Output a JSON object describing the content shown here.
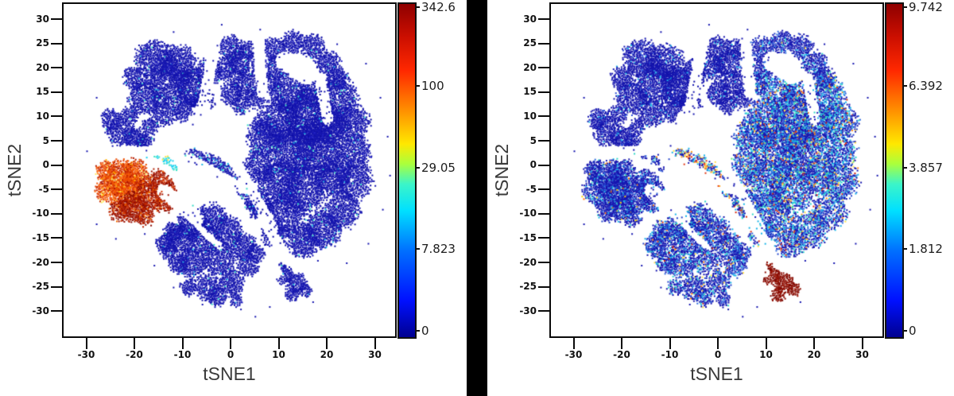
{
  "figure": {
    "background": "#ffffff",
    "separator_color": "#000000"
  },
  "chart_data": {
    "type": "scatter",
    "subtype": "tSNE-density-map-pair",
    "axes": {
      "x_label": "tSNE1",
      "y_label": "tSNE2",
      "x_ticks": [
        -30,
        -20,
        -10,
        0,
        10,
        20,
        30
      ],
      "y_ticks": [
        30,
        25,
        20,
        15,
        10,
        5,
        0,
        -5,
        -10,
        -15,
        -20,
        -25,
        -30
      ],
      "x_range": [
        -34.7,
        34.2
      ],
      "y_range": [
        -35.2,
        33.1
      ],
      "grid": false
    },
    "colorbar": {
      "colormap": "jet",
      "scale_hint": "nonlinear (log-like tick spacing)",
      "tick_fracs_from_top": [
        0.012,
        0.249,
        0.493,
        0.737,
        0.983
      ]
    },
    "plots": [
      {
        "id": "left",
        "seed": 42,
        "colorbar_ticks": [
          "342.6",
          "100",
          "29.05",
          "7.823",
          "0"
        ],
        "singles_color": "#1616b0",
        "clusters": {
          "A": [
            "bSolid",
            0.93
          ],
          "B": [
            "bSolid",
            0.93
          ],
          "Ctop": [
            "bSolid",
            0.93
          ],
          "CtrTop": [
            "bSolid",
            0.93
          ],
          "Cright": [
            "bSolid",
            0.93
          ],
          "neck": [
            "bNeck",
            0.9
          ],
          "D_or": [
            "orHot",
            0.95
          ],
          "D_dk": [
            "dkRed",
            0.95
          ],
          "D_fr": [
            "cyanL",
            0.85
          ],
          "E": [
            "bSolid",
            0.93
          ],
          "F": [
            "bSolid",
            0.95
          ],
          "Fdot": [
            "bSolid",
            0.9
          ]
        }
      },
      {
        "id": "right",
        "seed": 1337,
        "colorbar_ticks": [
          "9.742",
          "6.392",
          "3.857",
          "1.812",
          "0"
        ],
        "singles_color": "#1616b0",
        "clusters": {
          "A": [
            "bLight",
            0.92
          ],
          "B": [
            "bLight",
            0.92
          ],
          "Ctop": [
            "bLight",
            0.92
          ],
          "CtrTop": [
            "bLight2",
            0.9
          ],
          "Cright": [
            "bHeavy",
            0.82
          ],
          "neck": [
            "neckHot",
            0.85
          ],
          "D_or": [
            "bMed",
            0.9
          ],
          "D_dk": [
            "bMed",
            0.9
          ],
          "D_fr": [
            "bMed",
            0.85
          ],
          "E": [
            "bMedHv",
            0.86
          ],
          "F": [
            "dkSolid",
            0.95
          ],
          "Fdot": [
            "dkSolid",
            0.9
          ]
        }
      }
    ],
    "palettes": {
      "bSolid": [
        [
          "#1616b0",
          78
        ],
        [
          "#0d0da4",
          13
        ],
        [
          "#2424c6",
          7
        ],
        [
          "#1ab4e6",
          1
        ],
        [
          "#35dcc8",
          1
        ]
      ],
      "bNeck": [
        [
          "#1616b0",
          70
        ],
        [
          "#0d0da4",
          12
        ],
        [
          "#2424c6",
          8
        ],
        [
          "#1ab4e6",
          6
        ],
        [
          "#35dcc8",
          4
        ]
      ],
      "bLight": [
        [
          "#1616b0",
          84
        ],
        [
          "#0d0da4",
          8
        ],
        [
          "#2e52d8",
          5
        ],
        [
          "#18b6e8",
          3
        ]
      ],
      "bLight2": [
        [
          "#1616b0",
          72
        ],
        [
          "#2444cc",
          12
        ],
        [
          "#2e6ae0",
          8
        ],
        [
          "#18b6e8",
          6
        ],
        [
          "#30d8c8",
          1.5
        ],
        [
          "#ffe14a",
          0.5
        ]
      ],
      "bMed": [
        [
          "#1616b0",
          67
        ],
        [
          "#2444cc",
          14
        ],
        [
          "#2e6ae0",
          9
        ],
        [
          "#18b6e8",
          6
        ],
        [
          "#30d8c8",
          2
        ],
        [
          "#ffd400",
          1
        ],
        [
          "#ff7300",
          1
        ]
      ],
      "bMedHv": [
        [
          "#1616b0",
          56
        ],
        [
          "#2444cc",
          16
        ],
        [
          "#2e6ae0",
          11
        ],
        [
          "#18b6e8",
          9
        ],
        [
          "#30d8c8",
          4
        ],
        [
          "#ffe14a",
          2
        ],
        [
          "#ff7300",
          1.2
        ],
        [
          "#d22a10",
          0.8
        ]
      ],
      "bHeavy": [
        [
          "#1616b0",
          40
        ],
        [
          "#2444cc",
          18
        ],
        [
          "#2e6ae0",
          13
        ],
        [
          "#18b6e8",
          13
        ],
        [
          "#30d8c8",
          6
        ],
        [
          "#ffe14a",
          3
        ],
        [
          "#ff8c1a",
          1.8
        ],
        [
          "#d82a10",
          2.2
        ],
        [
          "#58e07c",
          1
        ]
      ],
      "neckHot": [
        [
          "#1616b0",
          34
        ],
        [
          "#2444cc",
          14
        ],
        [
          "#18b6e8",
          14
        ],
        [
          "#30d8c8",
          8
        ],
        [
          "#ffe14a",
          10
        ],
        [
          "#ffa01e",
          10
        ],
        [
          "#e03513",
          10
        ]
      ],
      "orHot": [
        [
          "#f05000",
          34
        ],
        [
          "#e03c00",
          22
        ],
        [
          "#cc2a00",
          16
        ],
        [
          "#ff7a1e",
          12
        ],
        [
          "#b01800",
          8
        ],
        [
          "#ffb300",
          5
        ],
        [
          "#ffec60",
          3
        ]
      ],
      "dkRed": [
        [
          "#b62000",
          30
        ],
        [
          "#9e1200",
          28
        ],
        [
          "#8a0a00",
          22
        ],
        [
          "#d63600",
          14
        ],
        [
          "#f26a00",
          6
        ]
      ],
      "cyanL": [
        [
          "#1ad2f0",
          45
        ],
        [
          "#38e2c4",
          30
        ],
        [
          "#86ecff",
          15
        ],
        [
          "#ffe14a",
          10
        ]
      ],
      "dkSolid": [
        [
          "#8d0d03",
          70
        ],
        [
          "#7a0600",
          20
        ],
        [
          "#a01806",
          10
        ]
      ]
    },
    "geometry": {
      "clusters": {
        "A": [
          [
            -16,
            22,
            4
          ],
          [
            -11,
            21,
            4
          ],
          [
            -13,
            17,
            4.5
          ],
          [
            -8,
            16,
            4
          ],
          [
            -18,
            14,
            3.5
          ],
          [
            -14,
            11,
            3
          ],
          [
            -9,
            11.5,
            3
          ],
          [
            -5,
            19,
            3
          ],
          [
            -6,
            13,
            2.5
          ],
          [
            -20,
            18,
            2.5
          ]
        ],
        "B": [
          [
            -23,
            7,
            3
          ],
          [
            -20,
            5.5,
            2.5
          ],
          [
            -25,
            9.5,
            2.2
          ],
          [
            -21,
            10.5,
            2
          ],
          [
            -18,
            4.5,
            2
          ],
          [
            -17,
            8,
            1.8
          ]
        ],
        "Ctop": [
          [
            0,
            24,
            2.8
          ],
          [
            2,
            21,
            3
          ],
          [
            -1,
            20,
            2.5
          ],
          [
            3,
            17,
            2.8
          ],
          [
            0,
            15,
            2.5
          ],
          [
            4,
            24,
            2.2
          ],
          [
            5,
            14,
            2.2
          ],
          [
            2,
            12.5,
            2
          ]
        ],
        "CtrTop": [
          [
            9,
            24,
            2.6
          ],
          [
            13,
            25.5,
            2.4
          ],
          [
            17,
            24.5,
            2.6
          ],
          [
            20,
            21,
            2.8
          ],
          [
            9,
            20,
            2.4
          ],
          [
            8,
            17,
            2.2
          ],
          [
            22,
            18,
            2.5
          ]
        ],
        "Cright": [
          [
            22,
            14,
            4.5
          ],
          [
            25,
            9,
            4
          ],
          [
            25.5,
            3,
            3.5
          ],
          [
            25.5,
            -3,
            4
          ],
          [
            23,
            -9,
            4
          ],
          [
            19,
            -13,
            4
          ],
          [
            15,
            -15.5,
            3.5
          ],
          [
            16,
            10,
            5.5
          ],
          [
            18,
            3,
            5.5
          ],
          [
            13,
            3,
            5
          ],
          [
            10,
            9,
            5
          ],
          [
            15,
            -5,
            5
          ],
          [
            10,
            -3,
            4.5
          ],
          [
            11,
            -10,
            4.5
          ],
          [
            7,
            6,
            4
          ],
          [
            6,
            0,
            3.5
          ],
          [
            12,
            15,
            4
          ],
          [
            17,
            15,
            3.5
          ],
          [
            6,
            -8,
            3
          ],
          [
            9,
            -14,
            3
          ],
          [
            21,
            -2,
            4
          ],
          [
            20,
            8,
            4.5
          ]
        ],
        "neck": [
          [
            -7,
            1.5,
            2
          ],
          [
            -4,
            0.5,
            2
          ],
          [
            -1.5,
            -1,
            1.8
          ],
          [
            0.5,
            -3,
            1.8
          ],
          [
            2.5,
            -5,
            1.8
          ],
          [
            4.5,
            -7.5,
            1.8
          ],
          [
            6,
            -9.5,
            1.6
          ],
          [
            -9,
            2.5,
            1.6
          ]
        ],
        "D_or": [
          [
            -23,
            -2.5,
            3.8
          ],
          [
            -25.5,
            -5,
            3
          ],
          [
            -20,
            -1.5,
            3
          ],
          [
            -21,
            -5,
            3.5
          ],
          [
            -26,
            -1,
            2.2
          ]
        ],
        "D_dk": [
          [
            -17,
            -6,
            3.5
          ],
          [
            -20.5,
            -8.5,
            3.2
          ],
          [
            -15,
            -3.5,
            2.8
          ],
          [
            -23,
            -9,
            2.5
          ],
          [
            -14,
            -7.5,
            2.2
          ],
          [
            -13,
            -5,
            1.8
          ],
          [
            -18,
            -10.5,
            2
          ]
        ],
        "D_fr": [
          [
            -13.2,
            1.2,
            1.1
          ],
          [
            -15.5,
            2,
            0.7
          ],
          [
            -11.8,
            -0.5,
            0.7
          ],
          [
            -17.5,
            2.3,
            0.6
          ]
        ],
        "E": [
          [
            -8,
            -11.5,
            3.2
          ],
          [
            -4,
            -10.5,
            3
          ],
          [
            -10.5,
            -15,
            3.2
          ],
          [
            -5.5,
            -15,
            3.5
          ],
          [
            -0.5,
            -13.5,
            3.2
          ],
          [
            -8,
            -20,
            3.3
          ],
          [
            -2.5,
            -19,
            3.5
          ],
          [
            2.5,
            -16.5,
            2.8
          ],
          [
            -12,
            -13.5,
            2.2
          ],
          [
            -5,
            -25,
            2.8
          ],
          [
            0,
            -24,
            2.8
          ],
          [
            3.5,
            -20.5,
            2.4
          ],
          [
            -9,
            -25,
            1.8
          ],
          [
            -3,
            -27,
            2
          ],
          [
            1,
            -27.5,
            1.5
          ],
          [
            -13,
            -17.5,
            1.8
          ],
          [
            5,
            -18,
            2
          ],
          [
            -11,
            -20,
            2.2
          ],
          [
            -14,
            -16,
            1.8
          ]
        ],
        "F": [
          [
            11,
            -22.5,
            2
          ],
          [
            13.5,
            -24,
            2.2
          ],
          [
            15.5,
            -25.5,
            1.5
          ],
          [
            10,
            -21,
            1.3
          ],
          [
            12.5,
            -26.5,
            1.6
          ]
        ],
        "Fdot": [
          [
            10.8,
            -16.2,
            0.45
          ]
        ]
      },
      "holes": [
        [
          -3.2,
          27,
          -5.8,
          12,
          1.3
        ],
        [
          -5.8,
          12,
          -10,
          4.5,
          1.6
        ],
        [
          -27,
          2.8,
          -12.5,
          3.2,
          1.1
        ],
        [
          5.5,
          27,
          6.5,
          15,
          1.2
        ],
        [
          11,
          21.5,
          15.5,
          18.5,
          1.9
        ],
        [
          18.5,
          18,
          20,
          9.5,
          1.2
        ],
        [
          -10,
          2.2,
          2.5,
          -4.8,
          1.05
        ],
        [
          -0.3,
          2.4,
          8.6,
          -12.6,
          1.15
        ],
        [
          -14,
          -5.2,
          -7.2,
          -10.8,
          1.5
        ],
        [
          6.5,
          -10.5,
          10.5,
          -17.5,
          1.2
        ],
        [
          -6.8,
          -12.4,
          -2.6,
          -16.6,
          0.7
        ],
        [
          8.2,
          -18.5,
          9.6,
          -22,
          1.0
        ]
      ],
      "singles": [
        [
          -2,
          29
        ],
        [
          6,
          28
        ],
        [
          14,
          27.5
        ],
        [
          22,
          25
        ],
        [
          28,
          21
        ],
        [
          31,
          14
        ],
        [
          32.5,
          6
        ],
        [
          33,
          -2
        ],
        [
          31.5,
          -9
        ],
        [
          28.5,
          -16
        ],
        [
          24,
          -20
        ],
        [
          18,
          -19.5
        ],
        [
          8,
          -29
        ],
        [
          2,
          -29.5
        ],
        [
          -6,
          -28.5
        ],
        [
          -12,
          -25
        ],
        [
          -16,
          -20.5
        ],
        [
          -18,
          -14
        ],
        [
          -28,
          -12
        ],
        [
          -30,
          3
        ],
        [
          -28,
          14
        ],
        [
          -12,
          27.5
        ],
        [
          -20,
          24
        ],
        [
          5,
          -31
        ],
        [
          17,
          -28
        ],
        [
          -24,
          -15
        ]
      ]
    }
  }
}
